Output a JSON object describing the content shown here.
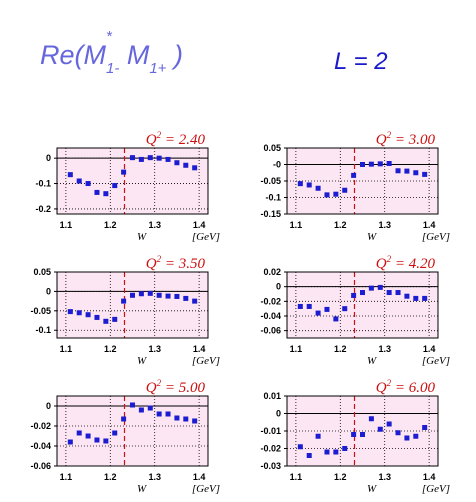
{
  "header": {
    "title_pre": "Re(M",
    "title_sup": "*",
    "title_sub1": "1-",
    "title_mid": " M",
    "title_sub2": "1+",
    "title_post": " )",
    "right_label": "L = 2"
  },
  "colors": {
    "panel_bg": "#fde6f3",
    "frame": "#000000",
    "marker": "#1c1cd0",
    "q2_label": "#cc1111",
    "dashed_line": "#cc1111",
    "title": "#6666dd",
    "l_label": "#1a1acc"
  },
  "chart_data": [
    {
      "type": "scatter",
      "title": "Q² = 2.40",
      "q2": "2.40",
      "xlabel": "W",
      "xunit": "[GeV]",
      "xlim": [
        1.08,
        1.42
      ],
      "ylim": [
        -0.22,
        0.04
      ],
      "xticks": [
        "1.1",
        "1.2",
        "1.3",
        "1.4"
      ],
      "yticks": [
        "0",
        "-0.1",
        "-0.2"
      ],
      "x": [
        1.11,
        1.13,
        1.15,
        1.17,
        1.19,
        1.21,
        1.23,
        1.25,
        1.27,
        1.29,
        1.31,
        1.33,
        1.35,
        1.37,
        1.39
      ],
      "values": [
        -0.065,
        -0.09,
        -0.1,
        -0.135,
        -0.14,
        -0.108,
        -0.055,
        0.002,
        -0.005,
        0.002,
        0.0,
        -0.005,
        -0.018,
        -0.028,
        -0.038
      ]
    },
    {
      "type": "scatter",
      "title": "Q² = 3.00",
      "q2": "3.00",
      "xlabel": "W",
      "xunit": "[GeV]",
      "xlim": [
        1.08,
        1.42
      ],
      "ylim": [
        -0.15,
        0.05
      ],
      "xticks": [
        "1.1",
        "1.2",
        "1.3",
        "1.4"
      ],
      "yticks": [
        "0.05",
        "-0",
        "-0.05",
        "-0.1",
        "-0.15"
      ],
      "x": [
        1.11,
        1.13,
        1.15,
        1.17,
        1.19,
        1.21,
        1.23,
        1.25,
        1.27,
        1.29,
        1.31,
        1.33,
        1.35,
        1.37,
        1.39
      ],
      "values": [
        -0.058,
        -0.062,
        -0.072,
        -0.092,
        -0.09,
        -0.078,
        -0.033,
        0.0,
        0.001,
        0.002,
        0.003,
        -0.019,
        -0.02,
        -0.025,
        -0.03
      ]
    },
    {
      "type": "scatter",
      "title": "Q² = 3.50",
      "q2": "3.50",
      "xlabel": "W",
      "xunit": "[GeV]",
      "xlim": [
        1.08,
        1.42
      ],
      "ylim": [
        -0.12,
        0.05
      ],
      "xticks": [
        "1.1",
        "1.2",
        "1.3",
        "1.4"
      ],
      "yticks": [
        "0.05",
        "0",
        "-0.05",
        "-0.1"
      ],
      "x": [
        1.11,
        1.13,
        1.15,
        1.17,
        1.19,
        1.21,
        1.23,
        1.25,
        1.27,
        1.29,
        1.31,
        1.33,
        1.35,
        1.37,
        1.39
      ],
      "values": [
        -0.052,
        -0.055,
        -0.06,
        -0.067,
        -0.077,
        -0.072,
        -0.025,
        -0.01,
        -0.006,
        -0.005,
        -0.01,
        -0.012,
        -0.013,
        -0.018,
        -0.025
      ]
    },
    {
      "type": "scatter",
      "title": "Q² = 4.20",
      "q2": "4.20",
      "xlabel": "W",
      "xunit": "[GeV]",
      "xlim": [
        1.08,
        1.42
      ],
      "ylim": [
        -0.07,
        0.02
      ],
      "xticks": [
        "1.1",
        "1.2",
        "1.3",
        "1.4"
      ],
      "yticks": [
        "0.02",
        "0",
        "-0.02",
        "-0.04",
        "-0.06"
      ],
      "x": [
        1.11,
        1.13,
        1.15,
        1.17,
        1.19,
        1.21,
        1.23,
        1.25,
        1.27,
        1.29,
        1.31,
        1.33,
        1.35,
        1.37,
        1.39
      ],
      "values": [
        -0.027,
        -0.027,
        -0.036,
        -0.031,
        -0.044,
        -0.03,
        -0.012,
        -0.008,
        -0.002,
        -0.001,
        -0.008,
        -0.008,
        -0.013,
        -0.016,
        -0.016
      ]
    },
    {
      "type": "scatter",
      "title": "Q² = 5.00",
      "q2": "5.00",
      "xlabel": "W",
      "xunit": "[GeV]",
      "xlim": [
        1.08,
        1.42
      ],
      "ylim": [
        -0.06,
        0.01
      ],
      "xticks": [
        "1.1",
        "1.2",
        "1.3",
        "1.4"
      ],
      "yticks": [
        "0",
        "-0.02",
        "-0.04",
        "-0.06"
      ],
      "x": [
        1.11,
        1.13,
        1.15,
        1.17,
        1.19,
        1.21,
        1.23,
        1.25,
        1.27,
        1.29,
        1.31,
        1.33,
        1.35,
        1.37,
        1.39
      ],
      "values": [
        -0.036,
        -0.027,
        -0.03,
        -0.034,
        -0.035,
        -0.027,
        -0.013,
        0.001,
        -0.004,
        -0.002,
        -0.008,
        -0.008,
        -0.012,
        -0.013,
        -0.015
      ]
    },
    {
      "type": "scatter",
      "title": "Q² = 6.00",
      "q2": "6.00",
      "xlabel": "W",
      "xunit": "[GeV]",
      "xlim": [
        1.08,
        1.42
      ],
      "ylim": [
        -0.03,
        0.01
      ],
      "xticks": [
        "1.1",
        "1.2",
        "1.3",
        "1.4"
      ],
      "yticks": [
        "0.01",
        "0",
        "-0.01",
        "-0.02",
        "-0.03"
      ],
      "x": [
        1.11,
        1.13,
        1.15,
        1.17,
        1.19,
        1.21,
        1.23,
        1.25,
        1.27,
        1.29,
        1.31,
        1.33,
        1.35,
        1.37,
        1.39
      ],
      "values": [
        -0.019,
        -0.024,
        -0.013,
        -0.022,
        -0.022,
        -0.02,
        -0.012,
        -0.012,
        -0.003,
        -0.009,
        -0.006,
        -0.011,
        -0.014,
        -0.013,
        -0.008
      ]
    }
  ]
}
